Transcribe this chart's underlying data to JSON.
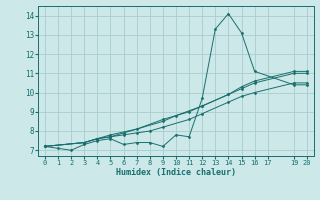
{
  "xlabel": "Humidex (Indice chaleur)",
  "ylabel": "",
  "xlim": [
    -0.5,
    20.5
  ],
  "ylim": [
    6.7,
    14.5
  ],
  "xticks": [
    0,
    1,
    2,
    3,
    4,
    5,
    6,
    7,
    8,
    9,
    10,
    11,
    12,
    13,
    14,
    15,
    16,
    17,
    19,
    20
  ],
  "yticks": [
    7,
    8,
    9,
    10,
    11,
    12,
    13,
    14
  ],
  "background_color": "#cce8e8",
  "grid_color": "#aacccc",
  "line_color": "#1a6e6e",
  "lines": [
    {
      "x": [
        0,
        1,
        2,
        3,
        4,
        5,
        6,
        7,
        8,
        9,
        10,
        11,
        12,
        13,
        14,
        15,
        16,
        19,
        20
      ],
      "y": [
        7.2,
        7.1,
        7.0,
        7.3,
        7.5,
        7.6,
        7.3,
        7.4,
        7.4,
        7.2,
        7.8,
        7.7,
        9.7,
        13.3,
        14.1,
        13.1,
        11.1,
        10.4,
        10.4
      ]
    },
    {
      "x": [
        0,
        3,
        4,
        5,
        6,
        9,
        10,
        12,
        14,
        15,
        16,
        19,
        20
      ],
      "y": [
        7.2,
        7.4,
        7.6,
        7.7,
        7.9,
        8.5,
        8.8,
        9.3,
        9.9,
        10.3,
        10.6,
        11.1,
        11.1
      ]
    },
    {
      "x": [
        0,
        3,
        4,
        5,
        7,
        9,
        11,
        12,
        14,
        15,
        16,
        19,
        20
      ],
      "y": [
        7.2,
        7.4,
        7.6,
        7.8,
        8.1,
        8.6,
        9.0,
        9.3,
        9.9,
        10.2,
        10.5,
        11.0,
        11.0
      ]
    },
    {
      "x": [
        0,
        3,
        4,
        5,
        6,
        7,
        8,
        9,
        11,
        12,
        14,
        15,
        16,
        19,
        20
      ],
      "y": [
        7.2,
        7.4,
        7.6,
        7.7,
        7.8,
        7.9,
        8.0,
        8.2,
        8.6,
        8.9,
        9.5,
        9.8,
        10.0,
        10.5,
        10.5
      ]
    }
  ]
}
